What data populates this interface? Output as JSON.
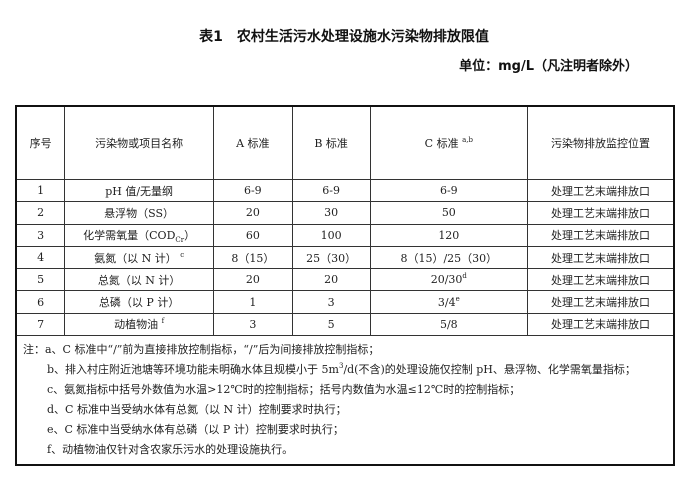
{
  "title": "表1　农村生活污水处理设施水污染物排放限值",
  "unit": "单位：mg/L（凡注明者除外）",
  "table": {
    "headers": [
      "序号",
      "污染物或项目名称",
      "A 标准",
      "B 标准",
      "C 标准",
      "污染物排放监控位置"
    ],
    "header_c_sup": "a,b",
    "rows": [
      {
        "no": "1",
        "name": "pH 值/无量纲",
        "name_sub": "",
        "name_sup": "",
        "a": "6-9",
        "b": "6-9",
        "c": "6-9",
        "c_sup": "",
        "loc": "处理工艺末端排放口"
      },
      {
        "no": "2",
        "name": "悬浮物（SS）",
        "name_sub": "",
        "name_sup": "",
        "a": "20",
        "b": "30",
        "c": "50",
        "c_sup": "",
        "loc": "处理工艺末端排放口"
      },
      {
        "no": "3",
        "name": "化学需氧量（COD",
        "name_sub": "Cr",
        "name_tail": "）",
        "name_sup": "",
        "a": "60",
        "b": "100",
        "c": "120",
        "c_sup": "",
        "loc": "处理工艺末端排放口"
      },
      {
        "no": "4",
        "name": "氨氮（以 N 计）",
        "name_sub": "",
        "name_sup": "c",
        "a": "8（15）",
        "b": "25（30）",
        "c": "8（15）/25（30）",
        "c_sup": "",
        "loc": "处理工艺末端排放口"
      },
      {
        "no": "5",
        "name": "总氮（以 N 计）",
        "name_sub": "",
        "name_sup": "",
        "a": "20",
        "b": "20",
        "c": "20/30",
        "c_sup": "d",
        "loc": "处理工艺末端排放口"
      },
      {
        "no": "6",
        "name": "总磷（以 P 计）",
        "name_sub": "",
        "name_sup": "",
        "a": "1",
        "b": "3",
        "c": "3/4",
        "c_sup": "e",
        "loc": "处理工艺末端排放口"
      },
      {
        "no": "7",
        "name": "动植物油",
        "name_sub": "",
        "name_sup": "f",
        "a": "3",
        "b": "5",
        "c": "5/8",
        "c_sup": "",
        "loc": "处理工艺末端排放口"
      }
    ]
  },
  "notes": {
    "a": "注：a、C 标准中“/”前为直接排放控制指标，“/”后为间接排放控制指标；",
    "b1": "b、排入村庄附近池塘等环境功能未明确水体且规模小于 5m",
    "b_sup": "3",
    "b2": "/d(不含)的处理设施仅控制 pH、悬浮物、化学需氧量指标；",
    "c": "c、氨氮指标中括号外数值为水温>12℃时的控制指标；括号内数值为水温≤12℃时的控制指标；",
    "d": "d、C 标准中当受纳水体有总氮（以 N 计）控制要求时执行；",
    "e": "e、C 标准中当受纳水体有总磷（以 P 计）控制要求时执行；",
    "f": "f、动植物油仅针对含农家乐污水的处理设施执行。"
  }
}
